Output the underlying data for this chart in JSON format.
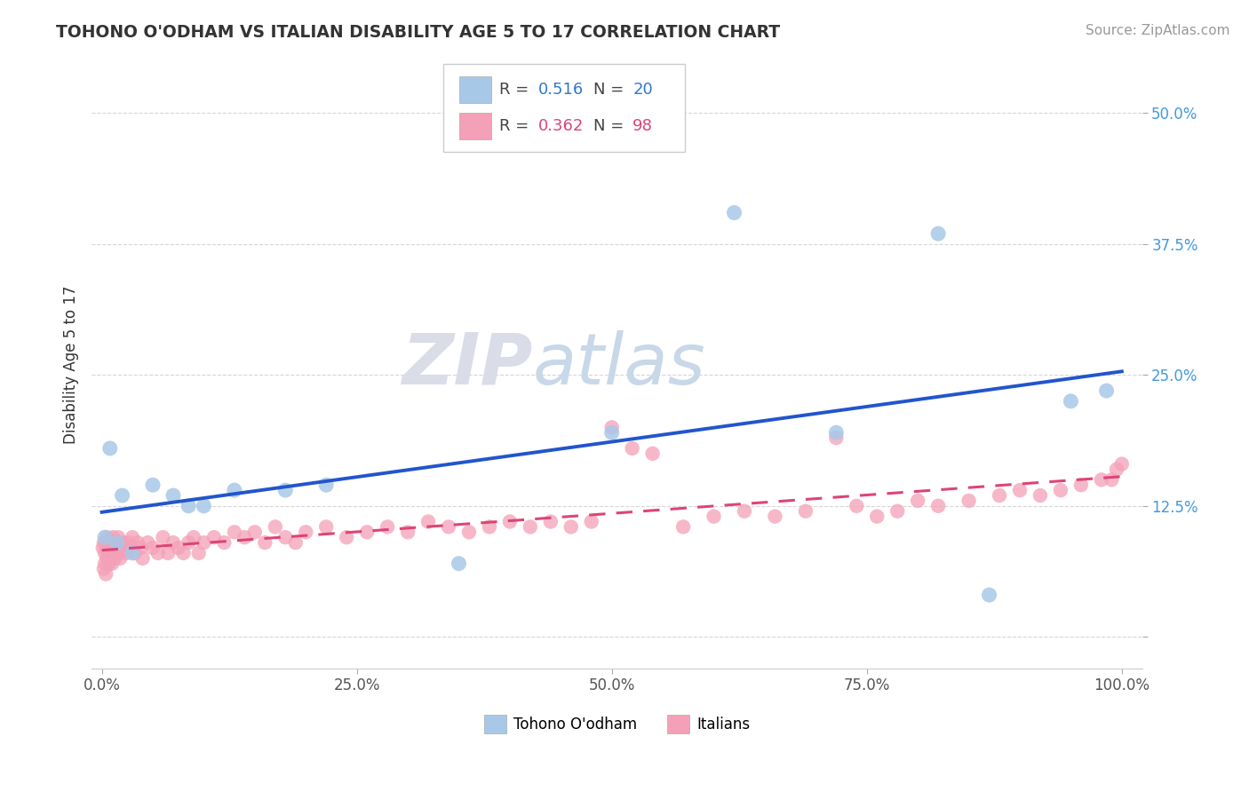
{
  "title": "TOHONO O'ODHAM VS ITALIAN DISABILITY AGE 5 TO 17 CORRELATION CHART",
  "source": "Source: ZipAtlas.com",
  "ylabel": "Disability Age 5 to 17",
  "watermark_zip": "ZIP",
  "watermark_atlas": "atlas",
  "legend1_label": "Tohono O'odham",
  "legend2_label": "Italians",
  "r1": 0.516,
  "n1": 20,
  "r2": 0.362,
  "n2": 98,
  "color1": "#A8C8E8",
  "color2": "#F4A0B8",
  "line_color1": "#2255CC",
  "line_color2": "#DD4477",
  "background_color": "#FFFFFF",
  "grid_color": "#CCCCCC",
  "tohono_x": [
    0.3,
    0.8,
    1.5,
    2.0,
    3.0,
    5.0,
    7.0,
    8.5,
    10.0,
    13.0,
    18.0,
    22.0,
    35.0,
    50.0,
    62.0,
    72.0,
    82.0,
    87.0,
    95.0,
    98.5
  ],
  "tohono_y": [
    9.5,
    18.0,
    9.0,
    13.5,
    8.0,
    14.5,
    13.5,
    12.5,
    12.5,
    14.0,
    14.0,
    14.5,
    7.0,
    19.5,
    40.5,
    19.5,
    38.5,
    4.0,
    22.5,
    23.5
  ],
  "italian_x": [
    0.1,
    0.2,
    0.2,
    0.3,
    0.3,
    0.4,
    0.4,
    0.5,
    0.5,
    0.6,
    0.6,
    0.7,
    0.7,
    0.8,
    0.8,
    0.9,
    0.9,
    1.0,
    1.0,
    1.1,
    1.1,
    1.2,
    1.3,
    1.4,
    1.5,
    1.6,
    1.7,
    1.8,
    2.0,
    2.2,
    2.4,
    2.6,
    2.8,
    3.0,
    3.2,
    3.5,
    3.8,
    4.0,
    4.5,
    5.0,
    5.5,
    6.0,
    6.5,
    7.0,
    7.5,
    8.0,
    8.5,
    9.0,
    9.5,
    10.0,
    11.0,
    12.0,
    13.0,
    14.0,
    15.0,
    16.0,
    17.0,
    18.0,
    19.0,
    20.0,
    22.0,
    24.0,
    26.0,
    28.0,
    30.0,
    32.0,
    34.0,
    36.0,
    38.0,
    40.0,
    42.0,
    44.0,
    46.0,
    48.0,
    50.0,
    52.0,
    54.0,
    57.0,
    60.0,
    63.0,
    66.0,
    69.0,
    72.0,
    74.0,
    76.0,
    78.0,
    80.0,
    82.0,
    85.0,
    88.0,
    90.0,
    92.0,
    94.0,
    96.0,
    98.0,
    99.0,
    99.5,
    100.0
  ],
  "italian_y": [
    8.5,
    9.0,
    6.5,
    8.0,
    7.0,
    8.5,
    6.0,
    9.5,
    7.5,
    8.0,
    7.5,
    9.0,
    7.0,
    8.5,
    9.0,
    7.5,
    8.5,
    9.0,
    7.0,
    8.0,
    9.5,
    8.5,
    7.5,
    9.0,
    8.0,
    9.5,
    8.0,
    7.5,
    9.0,
    8.5,
    8.0,
    9.0,
    8.5,
    9.5,
    8.0,
    9.0,
    8.5,
    7.5,
    9.0,
    8.5,
    8.0,
    9.5,
    8.0,
    9.0,
    8.5,
    8.0,
    9.0,
    9.5,
    8.0,
    9.0,
    9.5,
    9.0,
    10.0,
    9.5,
    10.0,
    9.0,
    10.5,
    9.5,
    9.0,
    10.0,
    10.5,
    9.5,
    10.0,
    10.5,
    10.0,
    11.0,
    10.5,
    10.0,
    10.5,
    11.0,
    10.5,
    11.0,
    10.5,
    11.0,
    20.0,
    18.0,
    17.5,
    10.5,
    11.5,
    12.0,
    11.5,
    12.0,
    19.0,
    12.5,
    11.5,
    12.0,
    13.0,
    12.5,
    13.0,
    13.5,
    14.0,
    13.5,
    14.0,
    14.5,
    15.0,
    15.0,
    16.0,
    16.5
  ]
}
